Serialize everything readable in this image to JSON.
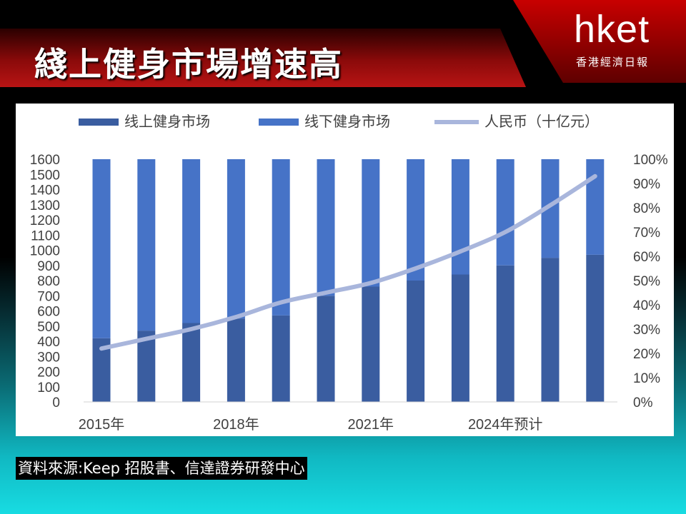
{
  "header": {
    "title": "綫上健身市場增速高",
    "logo_text": "hket",
    "logo_subtitle": "香港經濟日報"
  },
  "source": "資料來源:Keep 招股書、信達證券研發中心",
  "colors": {
    "online_bar": "#3a5da0",
    "offline_bar": "#4673c7",
    "line": "#a9b6dc"
  },
  "chart_data": {
    "type": "bar",
    "stacked": true,
    "categories": [
      "2015年",
      "",
      "",
      "2018年",
      "",
      "",
      "2021年",
      "",
      "",
      "2024年预计",
      "",
      ""
    ],
    "series": [
      {
        "name": "线上健身市场",
        "axis": "left",
        "values": [
          420,
          470,
          520,
          550,
          570,
          700,
          760,
          800,
          840,
          900,
          950,
          970
        ]
      },
      {
        "name": "线下健身市场",
        "axis": "left",
        "values": [
          1180,
          1130,
          1080,
          1050,
          1030,
          900,
          840,
          800,
          760,
          700,
          650,
          630
        ]
      },
      {
        "name": "人民币（十亿元）",
        "type": "line",
        "axis": "right",
        "values": [
          0.22,
          0.26,
          0.3,
          0.35,
          0.41,
          0.45,
          0.49,
          0.55,
          0.62,
          0.7,
          0.81,
          0.93
        ]
      }
    ],
    "y_left": {
      "ylim": [
        0,
        1600
      ],
      "ticks": [
        0,
        100,
        200,
        300,
        400,
        500,
        600,
        700,
        800,
        900,
        1000,
        1100,
        1200,
        1300,
        1400,
        1500,
        1600
      ],
      "labels": [
        "0",
        "100",
        "200",
        "300",
        "400",
        "500",
        "600",
        "700",
        "800",
        "900",
        "1000",
        "1100",
        "1200",
        "1300",
        "1400",
        "1500",
        "1600"
      ]
    },
    "y_right": {
      "ylim": [
        0,
        1
      ],
      "ticks": [
        0,
        0.1,
        0.2,
        0.3,
        0.4,
        0.5,
        0.6,
        0.7,
        0.8,
        0.9,
        1.0
      ],
      "labels": [
        "0%",
        "10%",
        "20%",
        "30%",
        "40%",
        "50%",
        "60%",
        "70%",
        "80%",
        "90%",
        "100%"
      ]
    },
    "legend_position": "top",
    "grid": false
  }
}
